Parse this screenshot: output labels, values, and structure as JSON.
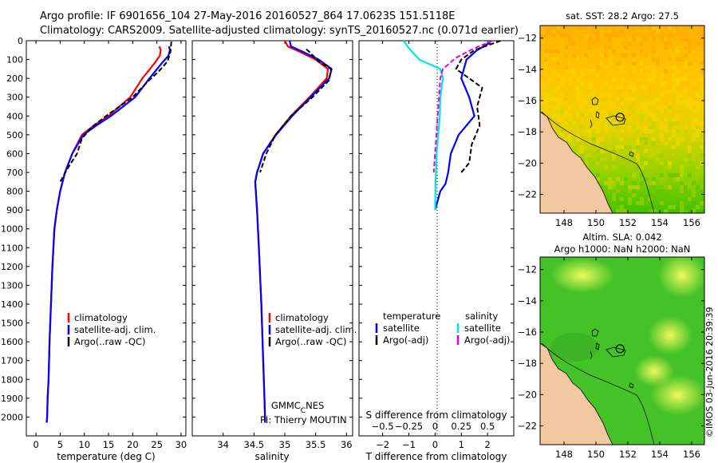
{
  "header": {
    "line1": "Argo profile: IF 6901656_104 27-May-2016 20160527_864 17.0623S 151.5118E",
    "line2": "Climatology: CARS2009. Satellite-adjusted climatology: synTS_20160527.nc (0.071d earlier)"
  },
  "side_text": "©IMOS 03-Jun-2016 20:39:39",
  "credit": {
    "line1a": "GMMC",
    "line1sub": "C",
    "line1b": "NES",
    "line2": "PI: Thierry MOUTIN"
  },
  "colors": {
    "climatology": "#ff0000",
    "satellite": "#0000ff",
    "argo": "#000000",
    "sal_satellite": "#00e5e5",
    "sal_argo": "#e500e5",
    "land": "#f2c8a0"
  },
  "chart_data": [
    {
      "type": "line",
      "title": "",
      "xlabel": "temperature (deg C)",
      "ylabel": "",
      "xlim": [
        -2,
        31
      ],
      "ylim": [
        2100,
        0
      ],
      "xticks": [
        0,
        5,
        10,
        15,
        20,
        25,
        30
      ],
      "xtick_labels": [
        "0",
        "5",
        "10",
        "15",
        "20",
        "25",
        "30"
      ],
      "yticks": [
        0,
        100,
        200,
        300,
        400,
        500,
        600,
        700,
        800,
        900,
        1000,
        1100,
        1200,
        1300,
        1400,
        1500,
        1600,
        1700,
        1800,
        1900,
        2000
      ],
      "ytick_labels": [
        "0",
        "100",
        "200",
        "300",
        "400",
        "500",
        "600",
        "700",
        "800",
        "900",
        "1000",
        "1100",
        "1200",
        "1300",
        "1400",
        "1500",
        "1600",
        "1700",
        "1800",
        "1900",
        "2000"
      ],
      "legend": [
        "climatology",
        "satellite-adj. clim.",
        "Argo(..raw -QC)"
      ],
      "series": [
        {
          "name": "climatology",
          "color": "#ff0000",
          "x": [
            25.5,
            25.8,
            25.6,
            24.5,
            22,
            19.5,
            15,
            12,
            9.5,
            7.5,
            6,
            5,
            4.3,
            3.8,
            3.4,
            3.1,
            2.8,
            2.6,
            2.4,
            2.3,
            2.2
          ],
          "y": [
            30,
            50,
            80,
            120,
            200,
            300,
            400,
            450,
            500,
            600,
            700,
            800,
            900,
            1000,
            1200,
            1400,
            1600,
            1800,
            1900,
            2000,
            2030
          ]
        },
        {
          "name": "satellite-adj. clim.",
          "color": "#0000ff",
          "x": [
            27.5,
            27.7,
            27.4,
            26,
            23.5,
            20.5,
            15.5,
            12.5,
            9.8,
            7.5,
            6,
            5,
            4.3,
            3.8,
            3.4,
            3.1,
            2.8,
            2.6,
            2.4,
            2.3,
            2.2
          ],
          "y": [
            30,
            50,
            80,
            120,
            200,
            300,
            400,
            450,
            500,
            600,
            700,
            800,
            900,
            1000,
            1200,
            1400,
            1600,
            1800,
            1900,
            2000,
            2030
          ]
        },
        {
          "name": "Argo(..raw -QC)",
          "color": "#000000",
          "dashed": true,
          "x": [
            28,
            27.8,
            27.2,
            25.5,
            23,
            20,
            14.5,
            11.5,
            9.5,
            8.5,
            6.5,
            5
          ],
          "y": [
            5,
            60,
            110,
            160,
            220,
            300,
            400,
            460,
            520,
            600,
            680,
            750
          ]
        }
      ]
    },
    {
      "type": "line",
      "title": "",
      "xlabel": "salinity",
      "ylabel": "",
      "xlim": [
        33.5,
        36.1
      ],
      "ylim": [
        2100,
        0
      ],
      "xticks": [
        34,
        34.5,
        35,
        35.5,
        36
      ],
      "xtick_labels": [
        "34",
        "34.5",
        "35",
        "35.5",
        "36"
      ],
      "legend": [
        "climatology",
        "satellite-adj. clim.",
        "Argo(..raw -QC)"
      ],
      "series": [
        {
          "name": "climatology",
          "color": "#ff0000",
          "x": [
            35.0,
            35.05,
            35.25,
            35.5,
            35.7,
            35.68,
            35.4,
            35.1,
            34.85,
            34.65,
            34.55,
            34.52,
            34.55,
            34.58,
            34.62,
            34.65,
            34.67,
            34.68,
            34.68
          ],
          "y": [
            0,
            30,
            60,
            100,
            150,
            200,
            300,
            400,
            500,
            600,
            700,
            750,
            900,
            1100,
            1400,
            1700,
            1900,
            2000,
            2030
          ]
        },
        {
          "name": "satellite-adj. clim.",
          "color": "#0000ff",
          "x": [
            35.08,
            35.1,
            35.3,
            35.55,
            35.76,
            35.72,
            35.42,
            35.12,
            34.86,
            34.65,
            34.55,
            34.52,
            34.55,
            34.58,
            34.62,
            34.65,
            34.67,
            34.68,
            34.68
          ],
          "y": [
            0,
            30,
            60,
            100,
            150,
            200,
            300,
            400,
            500,
            600,
            700,
            750,
            900,
            1100,
            1400,
            1700,
            1900,
            2000,
            2030
          ]
        },
        {
          "name": "Argo(..raw -QC)",
          "color": "#000000",
          "dashed": true,
          "x": [
            35.35,
            35.4,
            35.55,
            35.75,
            35.72,
            35.45,
            35.1,
            34.85,
            34.7,
            34.6
          ],
          "y": [
            45,
            60,
            110,
            150,
            210,
            300,
            400,
            500,
            600,
            700
          ]
        }
      ]
    },
    {
      "type": "line",
      "title": "",
      "xlabel": "T difference from climatology",
      "xlabel2": "S difference from climatology",
      "ylabel": "",
      "xlim": [
        -2.9,
        3
      ],
      "ylim": [
        2100,
        0
      ],
      "xticks": [
        -2,
        -1,
        0,
        1,
        2
      ],
      "xtick_labels": [
        "−2",
        "−1",
        "0",
        "1",
        "2"
      ],
      "sticks": [
        -0.5,
        -0.25,
        0,
        0.25,
        0.5
      ],
      "stick_labels": [
        "−0.5",
        "−0.25",
        "0",
        "0.25",
        "0.5"
      ],
      "s_scale": 4,
      "legend_titles": [
        "temperature",
        "salinity"
      ],
      "legend": [
        "satellite",
        "Argo(-adj)",
        "satellite",
        "Argo(-adj)"
      ],
      "series": [
        {
          "name": "T satellite",
          "color": "#0000ff",
          "x": [
            2.1,
            1.6,
            1.2,
            1.0,
            1.3,
            1.5,
            0.9,
            0.6,
            0.5,
            0.4,
            0.2,
            0
          ],
          "y": [
            10,
            50,
            100,
            200,
            300,
            400,
            500,
            600,
            700,
            760,
            800,
            900
          ]
        },
        {
          "name": "T Argo",
          "color": "#000000",
          "dashed": true,
          "x": [
            2.5,
            1.5,
            1.0,
            0.8,
            1.8,
            1.6,
            1.7,
            1.4,
            1.3,
            1.0
          ],
          "y": [
            0,
            50,
            100,
            150,
            250,
            350,
            450,
            550,
            650,
            700
          ]
        },
        {
          "name": "S satellite",
          "color": "#00e5e5",
          "x": [
            -1.2,
            -1.0,
            -0.6,
            0.2,
            0.3,
            0.2,
            0.18,
            0.12,
            0.06,
            0.02,
            0
          ],
          "y": [
            0,
            40,
            100,
            150,
            200,
            300,
            400,
            500,
            600,
            750,
            900
          ]
        },
        {
          "name": "S Argo",
          "color": "#e500e5",
          "dashed": true,
          "x": [
            2.2,
            1.5,
            0.8,
            0.3,
            0.2,
            0.15,
            0.1,
            0.05,
            -0.05
          ],
          "y": [
            0,
            40,
            90,
            150,
            200,
            300,
            400,
            500,
            700
          ]
        }
      ]
    },
    {
      "type": "heatmap",
      "title": "sat. SST: 28.2 Argo: 27.5",
      "xlim": [
        146.5,
        156.8
      ],
      "ylim": [
        -23.2,
        -11.2
      ],
      "xticks": [
        148,
        150,
        152,
        154,
        156
      ],
      "xtick_labels": [
        "148",
        "150",
        "152",
        "154",
        "156"
      ],
      "yticks": [
        -12,
        -14,
        -16,
        -18,
        -20,
        -22
      ],
      "ytick_labels": [
        "−12",
        "−14",
        "−16",
        "−18",
        "−20",
        "−22"
      ],
      "marker": [
        151.5118,
        -17.0623
      ]
    },
    {
      "type": "heatmap",
      "title": "Altim. SLA: 0.042",
      "subtitle": "Argo h1000: NaN h2000: NaN",
      "xlim": [
        146.5,
        156.8
      ],
      "ylim": [
        -23.2,
        -11.2
      ],
      "xticks": [
        148,
        150,
        152,
        154,
        156
      ],
      "xtick_labels": [
        "148",
        "150",
        "152",
        "154",
        "156"
      ],
      "yticks": [
        -12,
        -14,
        -16,
        -18,
        -20,
        -22
      ],
      "ytick_labels": [
        "−12",
        "−14",
        "−16",
        "−18",
        "−20",
        "−22"
      ],
      "marker": [
        151.5118,
        -17.0623
      ]
    }
  ]
}
